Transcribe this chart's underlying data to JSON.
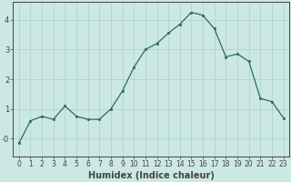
{
  "x": [
    0,
    1,
    2,
    3,
    4,
    5,
    6,
    7,
    8,
    9,
    10,
    11,
    12,
    13,
    14,
    15,
    16,
    17,
    18,
    19,
    20,
    21,
    22,
    23
  ],
  "y": [
    -0.15,
    0.6,
    0.75,
    0.65,
    1.1,
    0.75,
    0.65,
    0.65,
    1.0,
    1.6,
    2.4,
    3.0,
    3.2,
    3.55,
    3.85,
    4.25,
    4.15,
    3.7,
    2.75,
    2.85,
    2.6,
    1.35,
    1.25,
    0.7
  ],
  "line_color": "#2a6b5e",
  "marker_color": "#2a6b5e",
  "bg_color": "#cce8e4",
  "grid_color": "#b0d4d0",
  "axis_color": "#444444",
  "xlabel": "Humidex (Indice chaleur)",
  "xlabel_fontsize": 7,
  "tick_fontsize": 5.5,
  "ylim": [
    -0.6,
    4.6
  ],
  "xlim": [
    -0.5,
    23.5
  ],
  "yticks": [
    0,
    1,
    2,
    3,
    4
  ],
  "ytick_labels": [
    "-0",
    "1",
    "2",
    "3",
    "4"
  ]
}
